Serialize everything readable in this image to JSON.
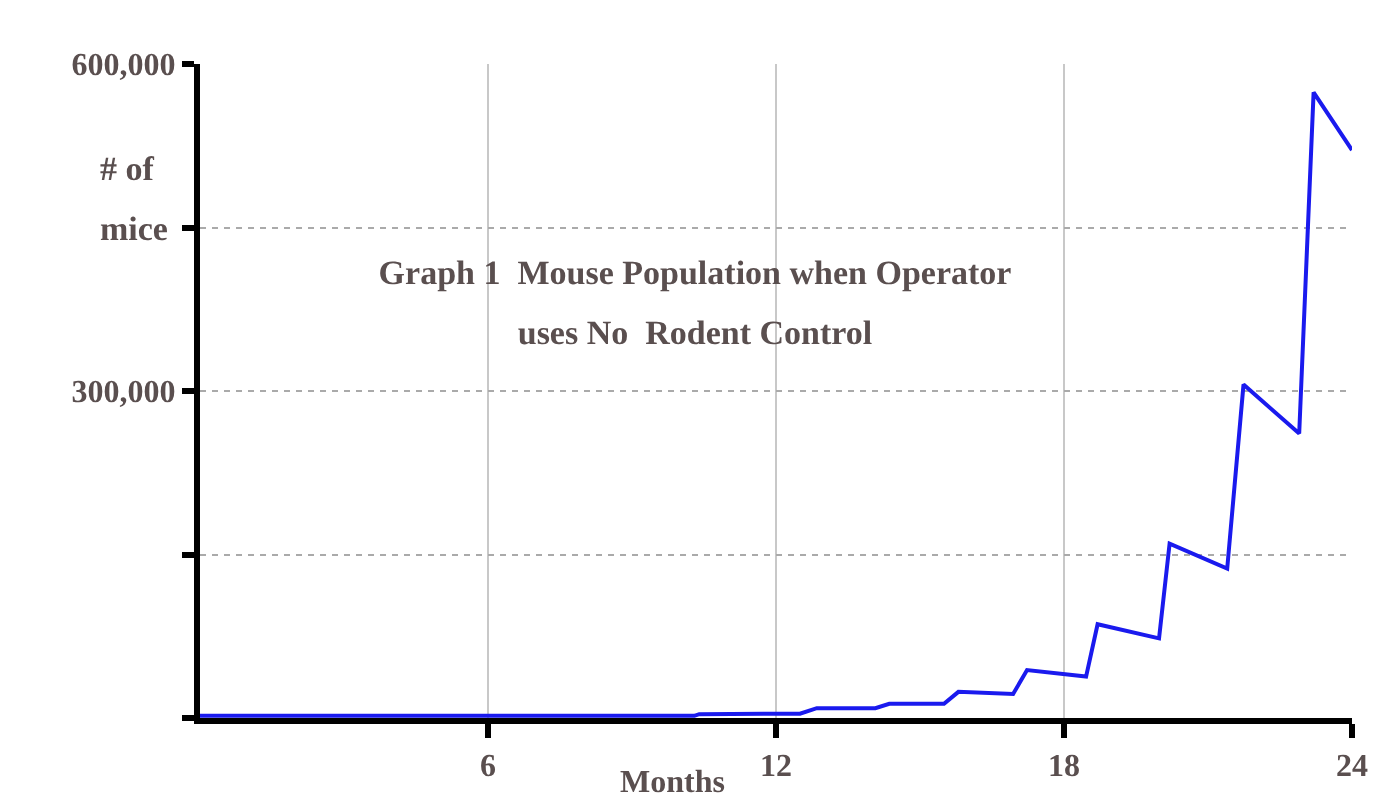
{
  "chart_data": {
    "type": "line",
    "title": "Graph 1  Mouse Population when Operator uses No  Rodent Control",
    "xlabel": "Months",
    "ylabel": "# of mice",
    "x": [
      0,
      10.3,
      10.4,
      12.5,
      12.85,
      14.07,
      14.36,
      15.5,
      15.8,
      16.94,
      17.23,
      18.46,
      18.7,
      19.98,
      20.2,
      21.4,
      21.74,
      22.9,
      23.2,
      24
    ],
    "series": [
      {
        "color": "#1a1aee",
        "values": [
          2000,
          2000,
          3500,
          4000,
          9000,
          9000,
          13000,
          13000,
          24000,
          22000,
          44000,
          38000,
          86000,
          73000,
          160000,
          137000,
          306000,
          261000,
          574000,
          521000
        ]
      }
    ],
    "xlim": [
      0,
      24
    ],
    "xticks": [
      6,
      12,
      18,
      24
    ],
    "ylim": [
      0,
      600000
    ],
    "yticks": [
      {
        "value": 0,
        "label": null
      },
      {
        "value": 150000,
        "label": null
      },
      {
        "value": 300000,
        "label": "300,000"
      },
      {
        "value": 450000,
        "label": null
      },
      {
        "value": 600000,
        "label": "600,000"
      }
    ],
    "grid": true,
    "marker": "none",
    "line_style": "solid"
  }
}
